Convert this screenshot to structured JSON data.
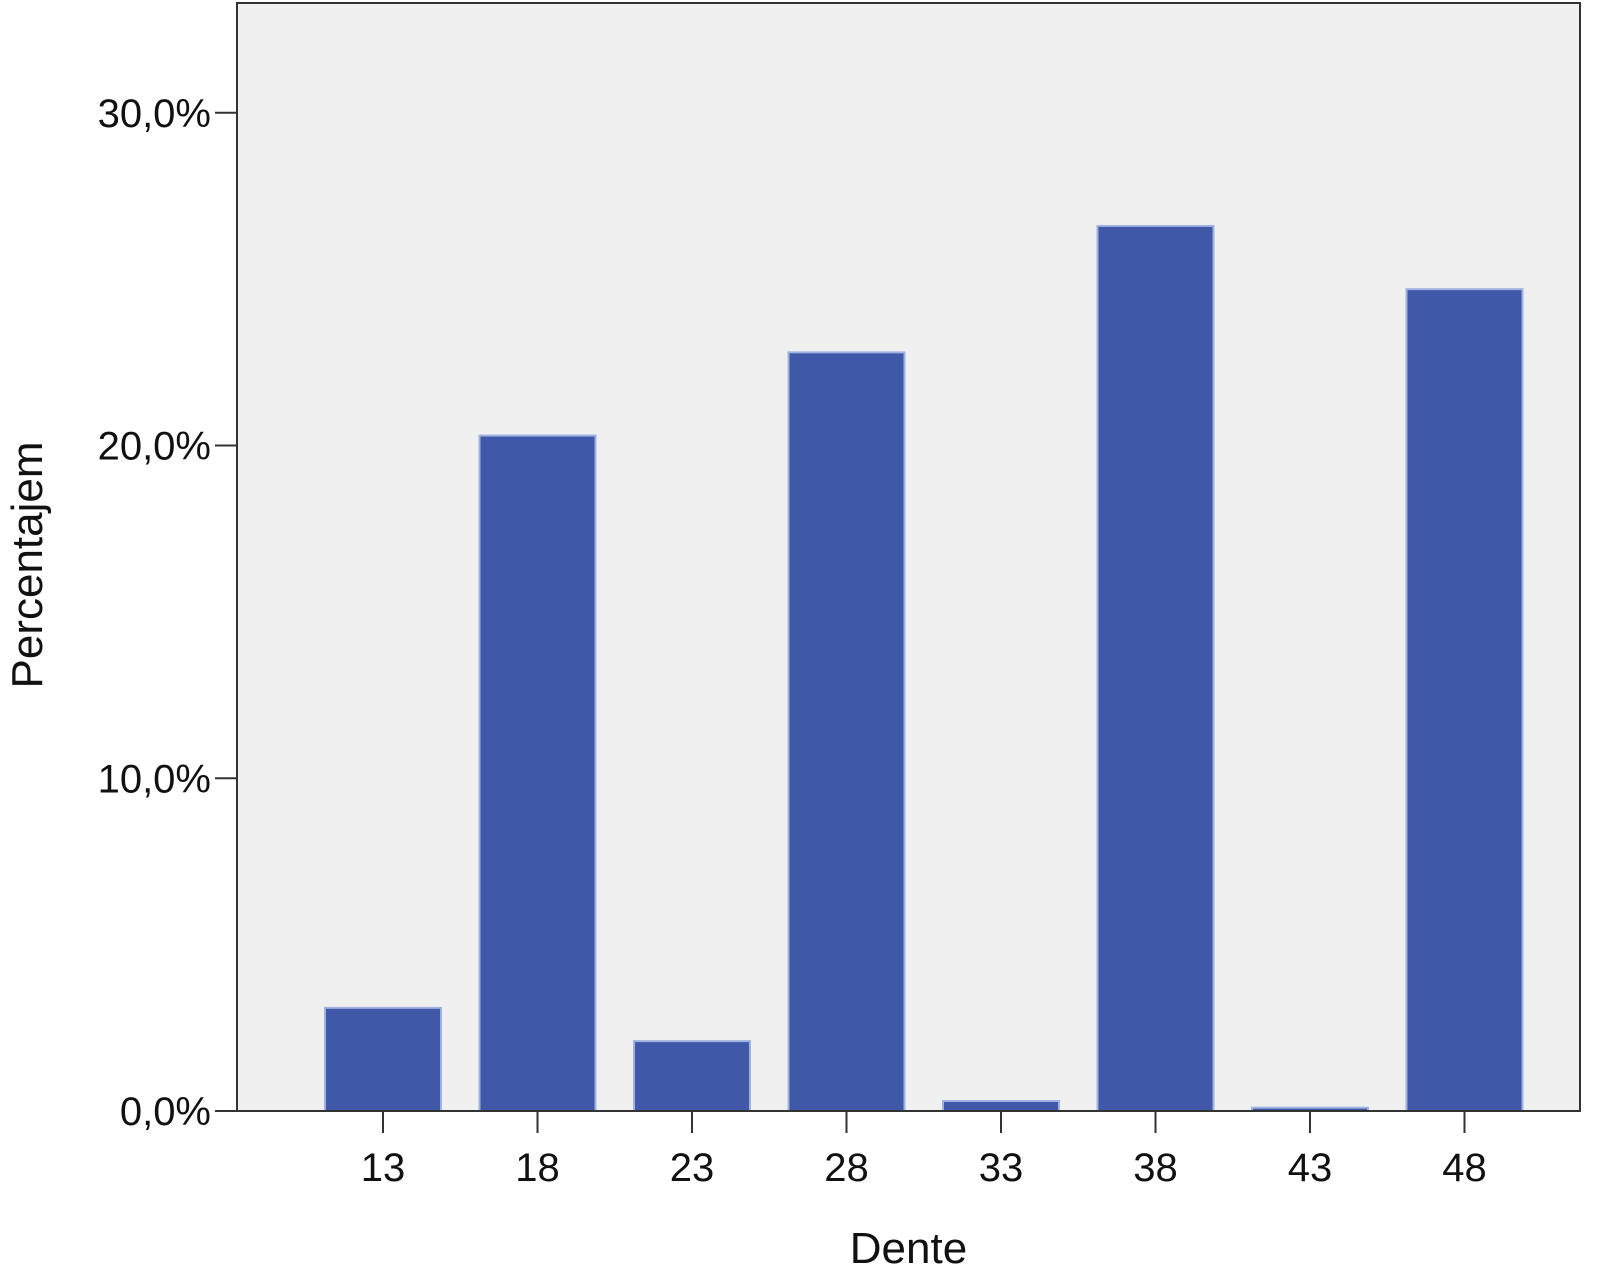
{
  "chart_data": {
    "type": "bar",
    "title": "",
    "xlabel": "Dente",
    "ylabel": "Percentajem",
    "categories": [
      "13",
      "18",
      "23",
      "28",
      "33",
      "38",
      "43",
      "48"
    ],
    "values": [
      3.1,
      20.3,
      2.1,
      22.8,
      0.3,
      26.6,
      0.1,
      24.7
    ],
    "ylim": [
      0,
      33.3
    ],
    "yticks": [
      0,
      10,
      20,
      30
    ],
    "ytick_labels": [
      "0,0%",
      "10,0%",
      "20,0%",
      "30,0%"
    ],
    "grid": false,
    "legend": "none",
    "colors": {
      "bar": "#3f58a8",
      "bar_edge": "#9fb2e0",
      "plot_background": "#f0f0f0",
      "axis": "#333333"
    }
  }
}
